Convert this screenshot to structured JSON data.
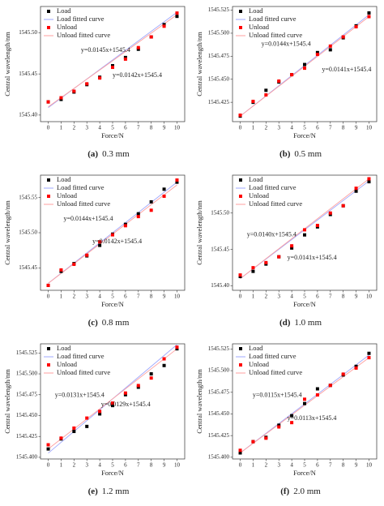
{
  "chart_data": [
    {
      "type": "scatter",
      "caption": {
        "label": "(a)",
        "text": "0.3 mm"
      },
      "xlabel": "Force/N",
      "ylabel": "Central wavelength/nm",
      "x": [
        0,
        1,
        2,
        3,
        4,
        5,
        6,
        7,
        8,
        9,
        10
      ],
      "xlim": [
        -0.6,
        10.6
      ],
      "xticks": [
        0,
        1,
        2,
        3,
        4,
        5,
        6,
        7,
        8,
        9,
        10
      ],
      "ylim": [
        1545.392,
        1545.532
      ],
      "yticks": [
        {
          "value": 1545.4,
          "label": "1545.40"
        },
        1545.45,
        {
          "value": 1545.5,
          "label": "1545.50"
        }
      ],
      "series": [
        {
          "name": "Load",
          "color": "#000000",
          "style": "marker",
          "values": [
            1545.416,
            1545.419,
            1545.428,
            1545.437,
            1545.446,
            1545.46,
            1545.47,
            1545.48,
            1545.495,
            1545.51,
            1545.52
          ]
        },
        {
          "name": "Load fitted curve",
          "color": "#9fa8ff",
          "style": "line",
          "x": [
            0,
            10
          ],
          "values": [
            1545.409,
            1545.525
          ]
        },
        {
          "name": "Unload",
          "color": "#ff0000",
          "style": "marker",
          "values": [
            1545.416,
            1545.421,
            1545.429,
            1545.438,
            1545.445,
            1545.458,
            1545.468,
            1545.482,
            1545.495,
            1545.508,
            1545.524
          ]
        },
        {
          "name": "Unload fitted curve",
          "color": "#ff9f9f",
          "style": "line",
          "x": [
            0,
            10
          ],
          "values": [
            1545.41,
            1545.522
          ]
        }
      ],
      "annotations": [
        "y=0.0145x+1545.4",
        "y=0.0142x+1545.4"
      ]
    },
    {
      "type": "scatter",
      "caption": {
        "label": "(b)",
        "text": "0.5 mm"
      },
      "xlabel": "Force/N",
      "ylabel": "Central wavelength/nm",
      "x": [
        0,
        1,
        2,
        3,
        4,
        5,
        6,
        7,
        8,
        9,
        10
      ],
      "xlim": [
        -0.6,
        10.6
      ],
      "xticks": [
        0,
        1,
        2,
        3,
        4,
        5,
        6,
        7,
        8,
        9,
        10
      ],
      "ylim": [
        1545.404,
        1545.529
      ],
      "yticks": [
        1545.425,
        {
          "value": 1545.45,
          "label": "1545.450"
        },
        1545.475,
        {
          "value": 1545.5,
          "label": "1545.500"
        },
        1545.525
      ],
      "series": [
        {
          "name": "Load",
          "color": "#000000",
          "style": "marker",
          "values": [
            1545.41,
            1545.425,
            1545.438,
            1545.447,
            1545.455,
            1545.466,
            1545.479,
            1545.482,
            1545.495,
            1545.508,
            1545.522
          ]
        },
        {
          "name": "Load fitted curve",
          "color": "#9fa8ff",
          "style": "line",
          "x": [
            0,
            10
          ],
          "values": [
            1545.41,
            1545.52
          ]
        },
        {
          "name": "Unload",
          "color": "#ff0000",
          "style": "marker",
          "values": [
            1545.411,
            1545.426,
            1545.433,
            1545.448,
            1545.455,
            1545.462,
            1545.477,
            1545.486,
            1545.496,
            1545.507,
            1545.518
          ]
        },
        {
          "name": "Unload fitted curve",
          "color": "#ff9f9f",
          "style": "line",
          "x": [
            0,
            10
          ],
          "values": [
            1545.41,
            1545.518
          ]
        }
      ],
      "annotations": [
        "y=0.0144x+1545.4",
        "y=0.0141x+1545.4"
      ]
    },
    {
      "type": "scatter",
      "caption": {
        "label": "(c)",
        "text": "0.8 mm"
      },
      "xlabel": "Force/N",
      "ylabel": "Central wavelength/nm",
      "x": [
        0,
        1,
        2,
        3,
        4,
        5,
        6,
        7,
        8,
        9,
        10
      ],
      "xlim": [
        -0.6,
        10.6
      ],
      "xticks": [
        0,
        1,
        2,
        3,
        4,
        5,
        6,
        7,
        8,
        9,
        10
      ],
      "ylim": [
        1545.418,
        1545.582
      ],
      "yticks": [
        1545.45,
        {
          "value": 1545.5,
          "label": "1545.50"
        },
        1545.55
      ],
      "series": [
        {
          "name": "Load",
          "color": "#000000",
          "style": "marker",
          "values": [
            1545.425,
            1545.445,
            1545.456,
            1545.467,
            1545.482,
            1545.498,
            1545.512,
            1545.527,
            1545.544,
            1545.562,
            1545.572
          ]
        },
        {
          "name": "Load fitted curve",
          "color": "#9fa8ff",
          "style": "line",
          "x": [
            0,
            10
          ],
          "values": [
            1545.428,
            1545.572
          ]
        },
        {
          "name": "Unload",
          "color": "#ff0000",
          "style": "marker",
          "values": [
            1545.425,
            1545.447,
            1545.455,
            1545.468,
            1545.487,
            1545.497,
            1545.51,
            1545.523,
            1545.532,
            1545.552,
            1545.575
          ]
        },
        {
          "name": "Unload fitted curve",
          "color": "#ff9f9f",
          "style": "line",
          "x": [
            0,
            10
          ],
          "values": [
            1545.428,
            1545.568
          ]
        }
      ],
      "annotations": [
        "y=0.0144x+1545.4",
        "y=0.0142x+1545.4"
      ]
    },
    {
      "type": "scatter",
      "caption": {
        "label": "(d)",
        "text": "1.0 mm"
      },
      "xlabel": "Force/N",
      "ylabel": "Central wavelength/nm",
      "x": [
        0,
        1,
        2,
        3,
        4,
        5,
        6,
        7,
        8,
        9,
        10
      ],
      "xlim": [
        -0.6,
        10.6
      ],
      "xticks": [
        0,
        1,
        2,
        3,
        4,
        5,
        6,
        7,
        8,
        9,
        10
      ],
      "ylim": [
        1545.394,
        1545.552
      ],
      "yticks": [
        {
          "value": 1545.4,
          "label": "1545.40"
        },
        1545.45,
        {
          "value": 1545.5,
          "label": "1545.50"
        }
      ],
      "series": [
        {
          "name": "Load",
          "color": "#000000",
          "style": "marker",
          "values": [
            1545.413,
            1545.42,
            1545.43,
            1545.44,
            1545.452,
            1545.47,
            1545.481,
            1545.498,
            1545.51,
            1545.53,
            1545.543
          ]
        },
        {
          "name": "Load fitted curve",
          "color": "#9fa8ff",
          "style": "line",
          "x": [
            0,
            10
          ],
          "values": [
            1545.41,
            1545.544
          ]
        },
        {
          "name": "Unload",
          "color": "#ff0000",
          "style": "marker",
          "values": [
            1545.415,
            1545.425,
            1545.432,
            1545.44,
            1545.455,
            1545.477,
            1545.483,
            1545.5,
            1545.51,
            1545.534,
            1545.547
          ]
        },
        {
          "name": "Unload fitted curve",
          "color": "#ff9f9f",
          "style": "line",
          "x": [
            0,
            10
          ],
          "values": [
            1545.41,
            1545.547
          ]
        }
      ],
      "annotations": [
        "y=0.0140x+1545.4",
        "y=0.0141x+1545.4"
      ]
    },
    {
      "type": "scatter",
      "caption": {
        "label": "(e)",
        "text": "1.2 mm"
      },
      "xlabel": "Force/N",
      "ylabel": "Central wavelength/nm",
      "x": [
        0,
        1,
        2,
        3,
        4,
        5,
        6,
        7,
        8,
        9,
        10
      ],
      "xlim": [
        -0.6,
        10.6
      ],
      "xticks": [
        0,
        1,
        2,
        3,
        4,
        5,
        6,
        7,
        8,
        9,
        10
      ],
      "ylim": [
        1545.398,
        1545.536
      ],
      "yticks": [
        {
          "value": 1545.4,
          "label": "1545.400"
        },
        1545.425,
        {
          "value": 1545.45,
          "label": "1545.450"
        },
        1545.475,
        {
          "value": 1545.5,
          "label": "1545.500"
        },
        1545.525
      ],
      "series": [
        {
          "name": "Load",
          "color": "#000000",
          "style": "marker",
          "values": [
            1545.41,
            1545.422,
            1545.431,
            1545.437,
            1545.452,
            1545.462,
            1545.475,
            1545.484,
            1545.5,
            1545.51,
            1545.53
          ]
        },
        {
          "name": "Load fitted curve",
          "color": "#9fa8ff",
          "style": "line",
          "x": [
            0,
            10
          ],
          "values": [
            1545.405,
            1545.535
          ]
        },
        {
          "name": "Unload",
          "color": "#ff0000",
          "style": "marker",
          "values": [
            1545.415,
            1545.423,
            1545.435,
            1545.447,
            1545.455,
            1545.465,
            1545.477,
            1545.486,
            1545.495,
            1545.518,
            1545.532
          ]
        },
        {
          "name": "Unload fitted curve",
          "color": "#ff9f9f",
          "style": "line",
          "x": [
            0,
            10
          ],
          "values": [
            1545.41,
            1545.53
          ]
        }
      ],
      "annotations": [
        "y=0.0131x+1545.4",
        "y=0.0129x+1545.4"
      ]
    },
    {
      "type": "scatter",
      "caption": {
        "label": "(f)",
        "text": "2.0 mm"
      },
      "xlabel": "Force/N",
      "ylabel": "Central wavelength/nm",
      "x": [
        0,
        1,
        2,
        3,
        4,
        5,
        6,
        7,
        8,
        9,
        10
      ],
      "xlim": [
        -0.6,
        10.6
      ],
      "xticks": [
        0,
        1,
        2,
        3,
        4,
        5,
        6,
        7,
        8,
        9,
        10
      ],
      "ylim": [
        1545.398,
        1545.531
      ],
      "yticks": [
        {
          "value": 1545.4,
          "label": "1545.400"
        },
        1545.425,
        {
          "value": 1545.45,
          "label": "1545.450"
        },
        1545.475,
        {
          "value": 1545.5,
          "label": "1545.500"
        },
        1545.525
      ],
      "series": [
        {
          "name": "Load",
          "color": "#000000",
          "style": "marker",
          "values": [
            1545.405,
            1545.418,
            1545.423,
            1545.437,
            1545.448,
            1545.462,
            1545.479,
            1545.483,
            1545.495,
            1545.505,
            1545.52
          ]
        },
        {
          "name": "Load fitted curve",
          "color": "#9fa8ff",
          "style": "line",
          "x": [
            0,
            10
          ],
          "values": [
            1545.405,
            1545.518
          ]
        },
        {
          "name": "Unload",
          "color": "#ff0000",
          "style": "marker",
          "values": [
            1545.408,
            1545.418,
            1545.422,
            1545.435,
            1545.44,
            1545.467,
            1545.472,
            1545.483,
            1545.496,
            1545.503,
            1545.515
          ]
        },
        {
          "name": "Unload fitted curve",
          "color": "#ff9f9f",
          "style": "line",
          "x": [
            0,
            10
          ],
          "values": [
            1545.405,
            1545.515
          ]
        }
      ],
      "annotations": [
        "y=0.0115x+1545.4",
        "y=0.0113x+1545.4"
      ]
    }
  ]
}
